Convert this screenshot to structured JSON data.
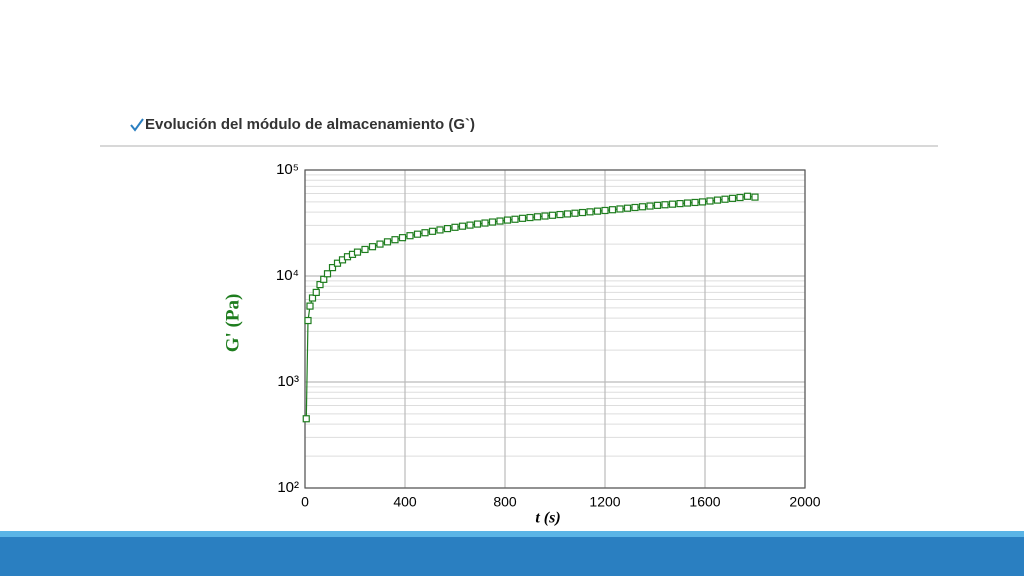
{
  "header": {
    "title": "Evolución del módulo de almacenamiento  (G`)"
  },
  "chart_data": {
    "type": "scatter",
    "xlabel": "t  (s)",
    "ylabel": "G'  (Pa)",
    "log_y": true,
    "grid": true,
    "x": [
      5,
      12,
      20,
      30,
      45,
      60,
      75,
      90,
      110,
      130,
      150,
      170,
      190,
      210,
      240,
      270,
      300,
      330,
      360,
      390,
      420,
      450,
      480,
      510,
      540,
      570,
      600,
      630,
      660,
      690,
      720,
      750,
      780,
      810,
      840,
      870,
      900,
      930,
      960,
      990,
      1020,
      1050,
      1080,
      1110,
      1140,
      1170,
      1200,
      1230,
      1260,
      1290,
      1320,
      1350,
      1380,
      1410,
      1440,
      1470,
      1500,
      1530,
      1560,
      1590,
      1620,
      1650,
      1680,
      1710,
      1740,
      1770,
      1800
    ],
    "series": [
      {
        "color": "#1e7d1e",
        "values": [
          450,
          3800,
          5200,
          6200,
          7000,
          8300,
          9300,
          10500,
          12000,
          13200,
          14200,
          15200,
          16000,
          16800,
          17800,
          18900,
          20000,
          21000,
          22000,
          23000,
          24000,
          24800,
          25600,
          26400,
          27200,
          28000,
          28800,
          29500,
          30200,
          30900,
          31600,
          32300,
          33000,
          33700,
          34300,
          35000,
          35600,
          36200,
          36800,
          37400,
          38000,
          38500,
          39100,
          39700,
          40300,
          40900,
          41500,
          42200,
          42900,
          43600,
          44300,
          45000,
          45700,
          46400,
          47000,
          47600,
          48200,
          48800,
          49400,
          50000,
          51000,
          52000,
          53000,
          54000,
          55000,
          56500,
          55500
        ]
      }
    ],
    "xlim": [
      0,
      2000
    ],
    "xticks": [
      0,
      400,
      800,
      1200,
      1600,
      2000
    ],
    "ylim": [
      100,
      100000
    ],
    "yticks": [
      {
        "value": 100,
        "label": "10²"
      },
      {
        "value": 1000,
        "label": "10³"
      },
      {
        "value": 10000,
        "label": "10⁴"
      },
      {
        "value": 100000,
        "label": "10⁵"
      }
    ]
  }
}
